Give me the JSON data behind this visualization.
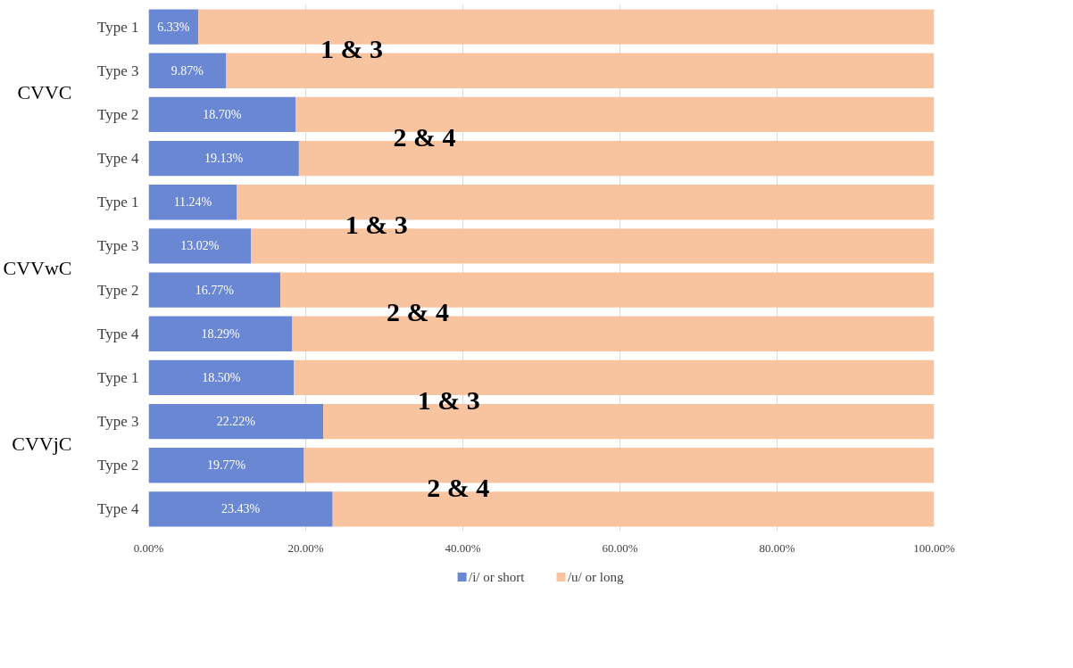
{
  "chart_data": {
    "type": "bar",
    "orientation": "horizontal",
    "stacked": true,
    "categories": [
      "Type 1",
      "Type 3",
      "Type 2",
      "Type 4",
      "Type 1",
      "Type 3",
      "Type 2",
      "Type 4",
      "Type 1",
      "Type 3",
      "Type 2",
      "Type 4"
    ],
    "series": [
      {
        "name": "/i/ or short",
        "color": "#6a87d4",
        "values": [
          6.33,
          9.87,
          18.7,
          19.13,
          11.24,
          13.02,
          16.77,
          18.29,
          18.5,
          22.22,
          19.77,
          23.43
        ],
        "value_labels": [
          "6.33%",
          "9.87%",
          "18.70%",
          "19.13%",
          "11.24%",
          "13.02%",
          "16.77%",
          "18.29%",
          "18.50%",
          "22.22%",
          "19.77%",
          "23.43%"
        ]
      },
      {
        "name": "/u/ or long",
        "color": "#f8c4a0",
        "values": [
          93.7,
          90.1,
          81.3,
          80.9,
          88.8,
          87.0,
          83.2,
          81.7,
          81.5,
          77.8,
          80.2,
          76.6
        ]
      }
    ],
    "xlim": [
      0,
      100
    ],
    "xticks": [
      {
        "value": 0,
        "label": "0.00%"
      },
      {
        "value": 20,
        "label": "20.00%"
      },
      {
        "value": 40,
        "label": "40.00%"
      },
      {
        "value": 60,
        "label": "60.00%"
      },
      {
        "value": 80,
        "label": "80.00%"
      },
      {
        "value": 100,
        "label": "100.00%"
      }
    ],
    "grid": "x",
    "legend": "bottom",
    "annotations": [
      "CVVC",
      "CVVwC",
      "CVVjC",
      "1 & 3",
      "2 & 4",
      "1 & 3",
      "2 & 4",
      "1 & 3",
      "2 & 4"
    ]
  }
}
